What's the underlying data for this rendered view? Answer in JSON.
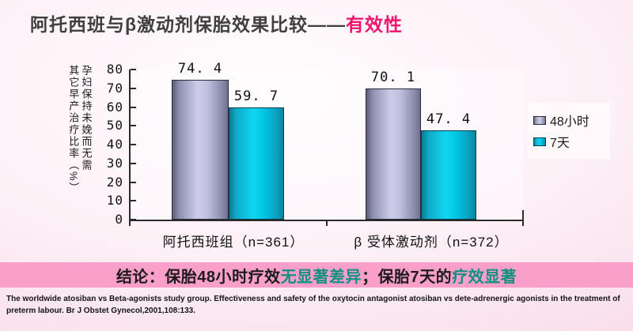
{
  "slide": {
    "title": {
      "main": "阿托西班与β激动剂保胎效果比较——",
      "accent": "有效性",
      "accent_color": "#f2146e",
      "main_color": "#3f3f3f"
    },
    "conclusion": {
      "bg_color": "#f99fc9",
      "teal_color": "#0f9181",
      "segments": [
        {
          "text": "结论：保胎48小时疗效",
          "style": "dark"
        },
        {
          "text": "无显著差异",
          "style": "teal"
        },
        {
          "text": "；保胎7天的",
          "style": "dark"
        },
        {
          "text": "疗效显著",
          "style": "teal"
        }
      ]
    },
    "citation": "The worldwide atosiban vs Beta-agonists study group. Effectiveness and safety of the oxytocin antagonist atosiban vs dete-adrenergic agonists in the treatment of preterm labour. Br J Obstet Gynecol,2001,108:133."
  },
  "chart_data": {
    "type": "bar",
    "title": "",
    "xlabel": "",
    "ylabel": "孕妇保持未娩而无需其它早产治疗比率（%）",
    "ylabel_lines": [
      "孕妇保持未娩而无需",
      "其它早产治疗比率（%）"
    ],
    "ylim": [
      0,
      80
    ],
    "ytick_step": 10,
    "yticks": [
      "80",
      "70",
      "60",
      "50",
      "40",
      "30",
      "20",
      "10",
      "0"
    ],
    "grid": false,
    "legend_position": "right",
    "categories": [
      "阿托西班组（n=361）",
      "β 受体激动剂（n=372）"
    ],
    "series": [
      {
        "name": "48小时",
        "values": [
          74.4,
          70.1
        ],
        "labels": [
          "74. 4",
          "70. 1"
        ],
        "color_edge": "#6f6f92",
        "color_center": "#cdcdea"
      },
      {
        "name": "7天",
        "values": [
          59.7,
          47.4
        ],
        "labels": [
          "59. 7",
          "47. 4"
        ],
        "color_edge": "#0b7a94",
        "color_center": "#10d6f2"
      }
    ]
  }
}
